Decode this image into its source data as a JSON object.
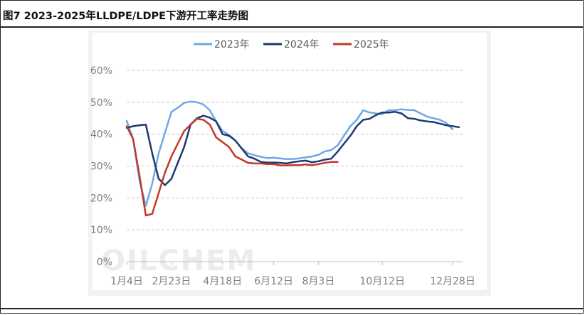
{
  "title": "图7 2023-2025年LLDPE/LDPE下游开工率走势图",
  "watermark": "OILCHEM",
  "chart_data": {
    "type": "line",
    "title": "图7 2023-2025年LLDPE/LDPE下游开工率走势图",
    "xlabel": "",
    "ylabel": "",
    "ylim": [
      0,
      60
    ],
    "y_ticks": [
      "0%",
      "10%",
      "20%",
      "30%",
      "40%",
      "50%",
      "60%"
    ],
    "x_ticks": [
      "1月4日",
      "2月23日",
      "4月18日",
      "6月12日",
      "8月3日",
      "10月12日",
      "12月28日"
    ],
    "x_tick_weeks": [
      1,
      8,
      16,
      24,
      31,
      41,
      52
    ],
    "grid": "horizontal-dashed",
    "legend_position": "top-center",
    "series": [
      {
        "name": "2023年",
        "color": "#6fa8e6",
        "x": [
          1,
          2,
          3,
          4,
          5,
          6,
          7,
          8,
          9,
          10,
          11,
          12,
          13,
          14,
          15,
          16,
          17,
          18,
          19,
          20,
          21,
          22,
          23,
          24,
          25,
          26,
          27,
          28,
          29,
          30,
          31,
          32,
          33,
          34,
          35,
          36,
          37,
          38,
          39,
          40,
          41,
          42,
          43,
          44,
          45,
          46,
          47,
          48,
          49,
          50,
          51,
          52
        ],
        "values": [
          44.2,
          38.5,
          25.5,
          17.5,
          24.5,
          34,
          40.5,
          47,
          48.3,
          49.8,
          50.2,
          50,
          49.3,
          47.5,
          44,
          41,
          39.8,
          38,
          35.5,
          34,
          33.4,
          32.9,
          32.5,
          32.6,
          32.4,
          32.2,
          32.2,
          32.4,
          32.7,
          33,
          33.5,
          34.6,
          35,
          36.5,
          39.5,
          42.5,
          44.5,
          47.5,
          46.8,
          46.5,
          46.3,
          47.5,
          47.5,
          47.8,
          47.6,
          47.5,
          46.5,
          45.5,
          45,
          44.5,
          43.5,
          41.5
        ]
      },
      {
        "name": "2024年",
        "color": "#1d3a6e",
        "x": [
          1,
          2,
          3,
          4,
          5,
          6,
          7,
          8,
          9,
          10,
          11,
          12,
          13,
          14,
          15,
          16,
          17,
          18,
          19,
          20,
          21,
          22,
          23,
          24,
          25,
          26,
          27,
          28,
          29,
          30,
          31,
          32,
          33,
          34,
          35,
          36,
          37,
          38,
          39,
          40,
          41,
          42,
          43,
          44,
          45,
          46,
          47,
          48,
          49,
          50,
          51,
          52,
          53
        ],
        "values": [
          42,
          42.5,
          42.8,
          43,
          34,
          26,
          24,
          26,
          31,
          36,
          43,
          45,
          45.8,
          45.2,
          44,
          40,
          39.5,
          38,
          35.5,
          33,
          32.3,
          31.3,
          31.1,
          31.1,
          31,
          30.8,
          31.2,
          31.5,
          31.7,
          31.2,
          31.5,
          32,
          32.3,
          34.5,
          37,
          39.5,
          42.5,
          44.5,
          44.8,
          46,
          46.8,
          46.8,
          47,
          46.5,
          45,
          44.8,
          44.3,
          44,
          43.8,
          43.3,
          42.8,
          42.5,
          42.2
        ]
      },
      {
        "name": "2025年",
        "color": "#c0392b",
        "x": [
          1,
          2,
          3,
          4,
          5,
          6,
          7,
          8,
          9,
          10,
          11,
          12,
          13,
          14,
          15,
          16,
          17,
          18,
          19,
          20,
          21,
          22,
          23,
          24,
          25,
          26,
          27,
          28,
          29,
          30,
          31,
          32,
          33,
          34
        ],
        "values": [
          42.5,
          38.5,
          27,
          14.5,
          15,
          21.5,
          28,
          33,
          37,
          41,
          43,
          44.8,
          44.5,
          43,
          39,
          37.5,
          36,
          33,
          32,
          31,
          30.8,
          30.8,
          30.6,
          30.6,
          30.2,
          30.2,
          30.3,
          30.3,
          30.5,
          30.3,
          30.6,
          31,
          31.3,
          31.3
        ]
      }
    ]
  }
}
